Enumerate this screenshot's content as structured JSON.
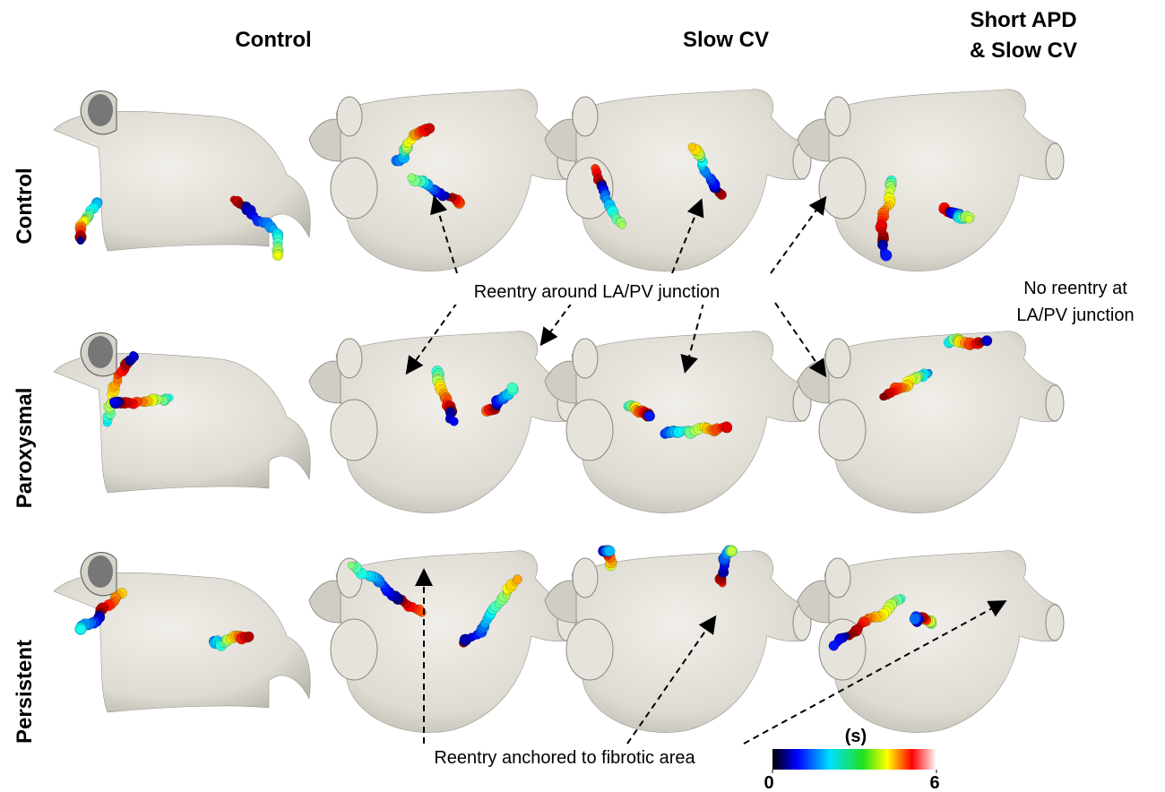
{
  "columns": [
    "Control",
    "Slow CV",
    [
      "Short APD",
      "& Slow CV"
    ]
  ],
  "rows": [
    "Control",
    "Paroxysmal",
    "Persistent"
  ],
  "annotations": {
    "reentry_junction": "Reentry around LA/PV junction",
    "no_reentry": [
      "No reentry at",
      "LA/PV junction"
    ],
    "reentry_fibrotic": "Reentry anchored to fibrotic area"
  },
  "colorbar": {
    "label": "(s)",
    "ticks": [
      0,
      6
    ]
  }
}
